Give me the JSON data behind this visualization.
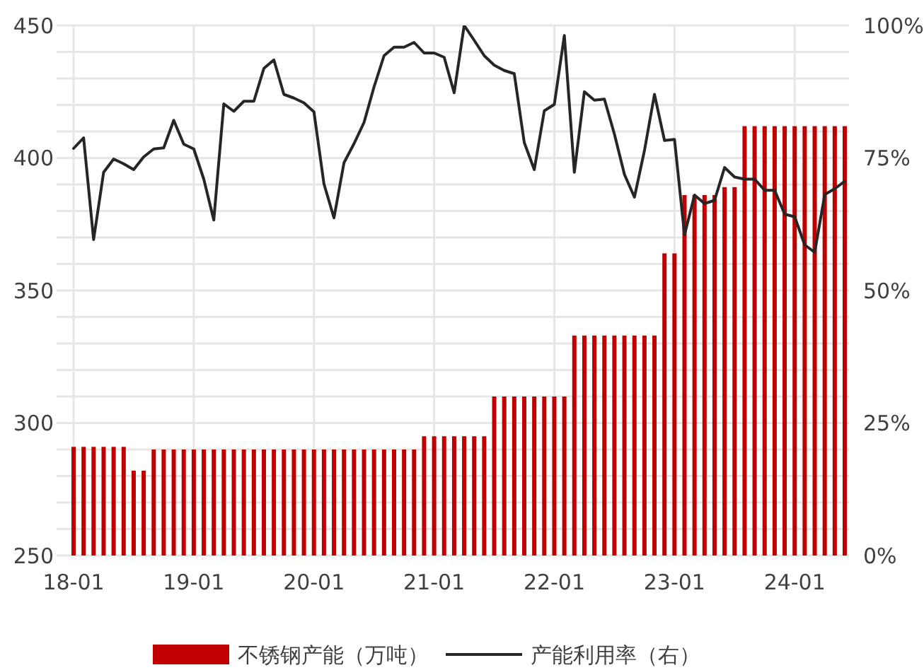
{
  "chart_data": {
    "type": "bar",
    "categories": [
      "18-01",
      null,
      null,
      null,
      null,
      null,
      null,
      null,
      null,
      null,
      null,
      null,
      "19-01",
      null,
      null,
      null,
      null,
      null,
      null,
      null,
      null,
      null,
      null,
      null,
      "20-01",
      null,
      null,
      null,
      null,
      null,
      null,
      null,
      null,
      null,
      null,
      null,
      "21-01",
      null,
      null,
      null,
      null,
      null,
      null,
      null,
      null,
      null,
      null,
      null,
      "22-01",
      null,
      null,
      null,
      null,
      null,
      null,
      null,
      null,
      null,
      null,
      null,
      "23-01",
      null,
      null,
      null,
      null,
      null,
      null,
      null,
      null,
      null,
      null,
      null,
      "24-01",
      null,
      null,
      null,
      null,
      null
    ],
    "series": [
      {
        "name": "不锈钢产能（万吨）",
        "color": "#c00000",
        "values": [
          291,
          291,
          291,
          291,
          291,
          291,
          282,
          282,
          290,
          290,
          290,
          290,
          290,
          290,
          290,
          290,
          290,
          290,
          290,
          290,
          290,
          290,
          290,
          290,
          290,
          290,
          290,
          290,
          290,
          290,
          290,
          290,
          290,
          290,
          290,
          295,
          295,
          295,
          295,
          295,
          295,
          295,
          310,
          310,
          310,
          310,
          310,
          310,
          310,
          310,
          333,
          333,
          333,
          333,
          333,
          333,
          333,
          333,
          333,
          364,
          364,
          386,
          386,
          386,
          386,
          389,
          389,
          412,
          412,
          412,
          412,
          412,
          412,
          412,
          412,
          412,
          412,
          412
        ]
      },
      {
        "name": "产能利用率（右）",
        "type": "line",
        "axis": "y2",
        "color": "#262626",
        "values": [
          76.8,
          78.8,
          59.6,
          72.3,
          74.8,
          73.9,
          72.8,
          75.2,
          76.7,
          76.9,
          82.1,
          77.6,
          76.7,
          71.0,
          63.3,
          85.2,
          83.8,
          85.7,
          85.7,
          91.9,
          93.5,
          87.0,
          86.3,
          85.4,
          83.7,
          70.1,
          63.7,
          74.1,
          77.7,
          81.7,
          88.4,
          94.3,
          95.9,
          95.9,
          96.8,
          94.8,
          94.8,
          94.0,
          87.3,
          100,
          97.2,
          94.3,
          92.5,
          91.5,
          90.9,
          77.9,
          72.8,
          83.9,
          85.1,
          98.1,
          72.3,
          87.5,
          85.9,
          86.1,
          79.5,
          71.9,
          67.6,
          76.4,
          87.0,
          78.3,
          78.5,
          60.5,
          68.0,
          66.4,
          67.0,
          73.2,
          71.4,
          71.0,
          71.0,
          68.9,
          68.9,
          64.4,
          63.9,
          58.6,
          57.2,
          68.1,
          69.2,
          70.6
        ]
      }
    ],
    "ylim": [
      250,
      450
    ],
    "yticks": [
      250,
      {
        "value": 260,
        "label": null
      },
      {
        "value": 270,
        "label": null
      },
      {
        "value": 280,
        "label": null
      },
      {
        "value": 290,
        "label": null
      },
      300,
      {
        "value": 310,
        "label": null
      },
      {
        "value": 320,
        "label": null
      },
      {
        "value": 330,
        "label": null
      },
      {
        "value": 340,
        "label": null
      },
      350,
      {
        "value": 360,
        "label": null
      },
      {
        "value": 370,
        "label": null
      },
      {
        "value": 380,
        "label": null
      },
      {
        "value": 390,
        "label": null
      },
      400,
      {
        "value": 410,
        "label": null
      },
      {
        "value": 420,
        "label": null
      },
      {
        "value": 430,
        "label": null
      },
      {
        "value": 440,
        "label": null
      },
      450
    ],
    "y2lim": [
      0,
      100
    ],
    "y2ticks": [
      {
        "value": 0,
        "label": "0%"
      },
      {
        "value": 25,
        "label": "25%"
      },
      {
        "value": 50,
        "label": "50%"
      },
      {
        "value": 75,
        "label": "75%"
      },
      {
        "value": 100,
        "label": "100%"
      }
    ],
    "grid": true,
    "legend": "bottom"
  }
}
